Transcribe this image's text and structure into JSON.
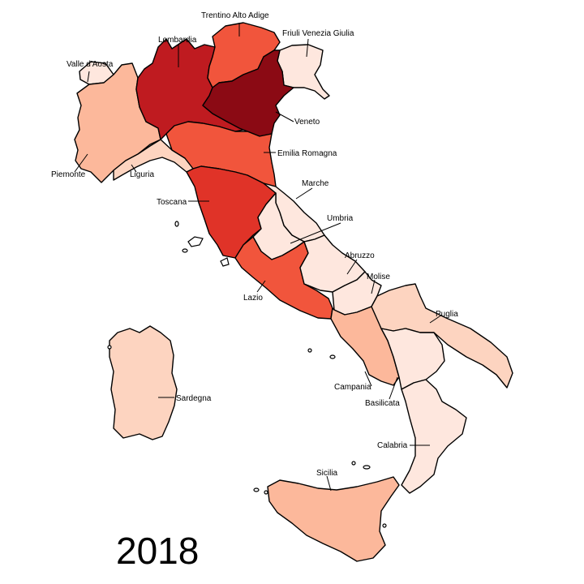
{
  "year": "2018",
  "palette": {
    "darkest": "#8b0a14",
    "very_dark": "#bf1b20",
    "dark": "#e03328",
    "medium": "#f1553c",
    "light": "#fcb89b",
    "lighter": "#fdd4c0",
    "lightest": "#fee7de"
  },
  "regions": [
    {
      "name": "Valle d'Aosta",
      "shade": "lightest"
    },
    {
      "name": "Piemonte",
      "shade": "light"
    },
    {
      "name": "Liguria",
      "shade": "lighter"
    },
    {
      "name": "Lombardia",
      "shade": "very_dark"
    },
    {
      "name": "Trentino Alto Adige",
      "shade": "medium"
    },
    {
      "name": "Friuli Venezia Giulia",
      "shade": "lightest"
    },
    {
      "name": "Veneto",
      "shade": "darkest"
    },
    {
      "name": "Emilia Romagna",
      "shade": "medium"
    },
    {
      "name": "Toscana",
      "shade": "dark"
    },
    {
      "name": "Marche",
      "shade": "lightest"
    },
    {
      "name": "Umbria",
      "shade": "lightest"
    },
    {
      "name": "Lazio",
      "shade": "medium"
    },
    {
      "name": "Abruzzo",
      "shade": "lightest"
    },
    {
      "name": "Molise",
      "shade": "lightest"
    },
    {
      "name": "Campania",
      "shade": "light"
    },
    {
      "name": "Puglia",
      "shade": "lighter"
    },
    {
      "name": "Basilicata",
      "shade": "lightest"
    },
    {
      "name": "Calabria",
      "shade": "lightest"
    },
    {
      "name": "Sicilia",
      "shade": "light"
    },
    {
      "name": "Sardegna",
      "shade": "lighter"
    }
  ]
}
